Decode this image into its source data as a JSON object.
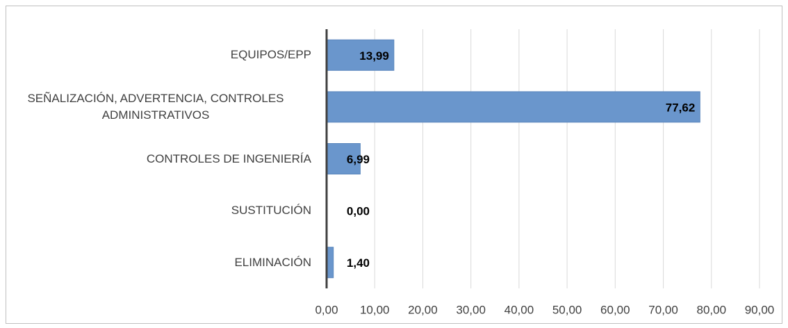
{
  "chart_data": {
    "type": "bar",
    "orientation": "horizontal",
    "categories": [
      "EQUIPOS/EPP",
      "SEÑALIZACIÓN, ADVERTENCIA, CONTROLES ADMINISTRATIVOS",
      "CONTROLES DE INGENIERÍA",
      "SUSTITUCIÓN",
      "ELIMINACIÓN"
    ],
    "values": [
      13.99,
      77.62,
      6.99,
      0,
      1.4
    ],
    "value_labels": [
      "13,99",
      "77,62",
      "6,99",
      "0,00",
      "1,40"
    ],
    "color": "#6a96cc",
    "xlim": [
      0,
      90
    ],
    "xticks": [
      {
        "value": 0,
        "label": "0,00"
      },
      {
        "value": 10,
        "label": "10,00"
      },
      {
        "value": 20,
        "label": "20,00"
      },
      {
        "value": 30,
        "label": "30,00"
      },
      {
        "value": 40,
        "label": "40,00"
      },
      {
        "value": 50,
        "label": "50,00"
      },
      {
        "value": 60,
        "label": "60,00"
      },
      {
        "value": 70,
        "label": "70,00"
      },
      {
        "value": 80,
        "label": "80,00"
      },
      {
        "value": 90,
        "label": "90,00"
      }
    ],
    "grid": true
  }
}
